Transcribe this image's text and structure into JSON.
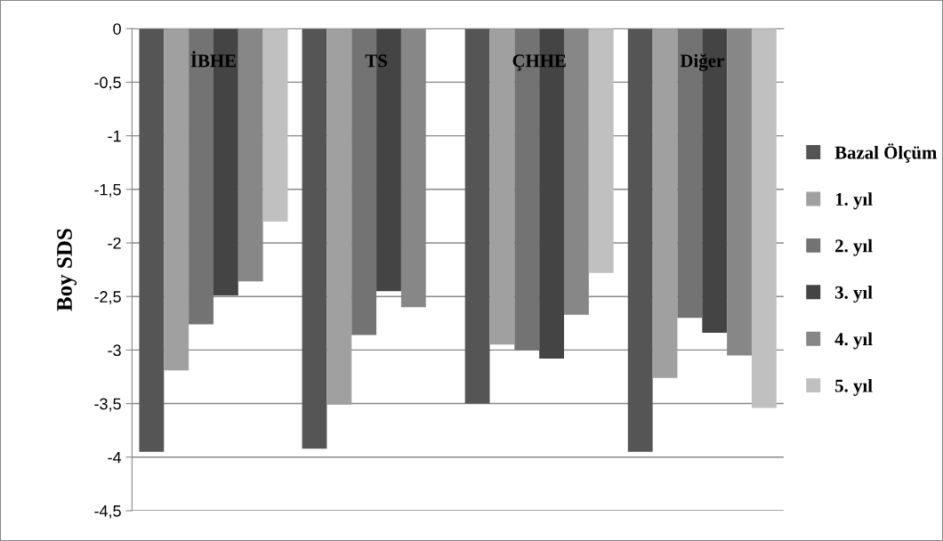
{
  "chart_data": {
    "type": "bar",
    "ylabel": "Boy SDS",
    "categories": [
      "İBHE",
      "TS",
      "ÇHHE",
      "Diğer"
    ],
    "series": [
      {
        "name": "Bazal Ölçüm",
        "color": "#555555",
        "values": [
          -3.95,
          -3.92,
          -3.5,
          -3.95
        ]
      },
      {
        "name": "1. yıl",
        "color": "#a0a0a0",
        "values": [
          -3.19,
          -3.51,
          -2.95,
          -3.26
        ]
      },
      {
        "name": "2. yıl",
        "color": "#737373",
        "values": [
          -2.76,
          -2.86,
          -3.0,
          -2.7
        ]
      },
      {
        "name": "3. yıl",
        "color": "#444444",
        "values": [
          -2.49,
          -2.45,
          -3.08,
          -2.84
        ]
      },
      {
        "name": "4. yıl",
        "color": "#878787",
        "values": [
          -2.36,
          -2.6,
          -2.67,
          -3.05
        ]
      },
      {
        "name": "5. yıl",
        "color": "#c0c0c0",
        "values": [
          -1.8,
          null,
          -2.28,
          -3.54
        ]
      }
    ],
    "ylim": [
      -4.5,
      0
    ],
    "yticks": [
      0,
      {
        "value": -0.5,
        "label": "-0,5"
      },
      -1,
      {
        "value": -1.5,
        "label": "-1,5"
      },
      -2,
      {
        "value": -2.5,
        "label": "-2,5"
      },
      -3,
      {
        "value": -3.5,
        "label": "-3,5"
      },
      -4,
      {
        "value": -4.5,
        "label": "-4,5"
      }
    ],
    "grid": "y",
    "legend": "right"
  }
}
